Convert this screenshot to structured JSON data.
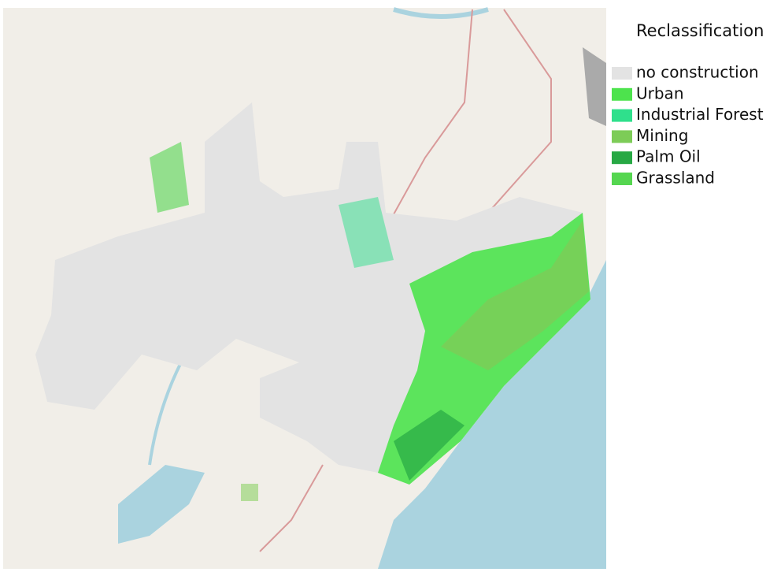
{
  "legend": {
    "title": "Reclassification",
    "items": [
      {
        "label": "no construction",
        "color": "#e3e3e3"
      },
      {
        "label": "Urban",
        "color": "#4de34d"
      },
      {
        "label": "Industrial Forest",
        "color": "#2fe08c"
      },
      {
        "label": "Mining",
        "color": "#7dcc57"
      },
      {
        "label": "Palm Oil",
        "color": "#27a844"
      },
      {
        "label": "Grassland",
        "color": "#55d650"
      }
    ]
  }
}
